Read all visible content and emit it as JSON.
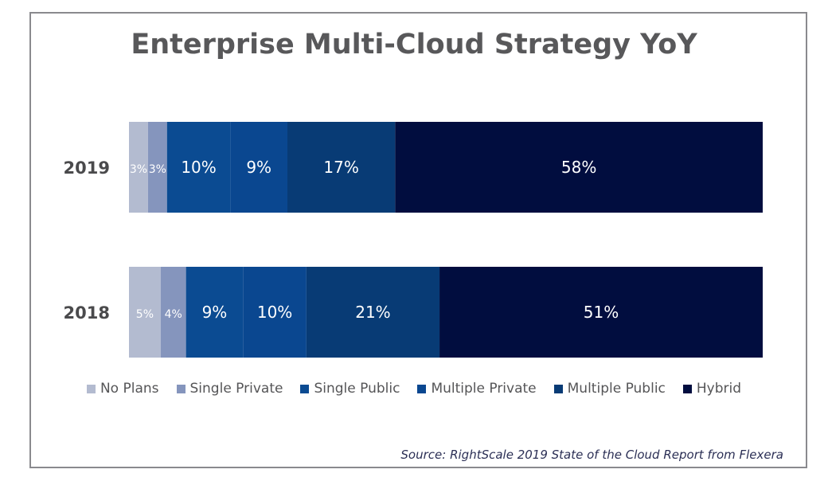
{
  "chart_data": {
    "type": "bar",
    "orientation": "horizontal",
    "stacked": true,
    "title": "Enterprise Multi-Cloud Strategy YoY",
    "xlabel": "",
    "ylabel": "",
    "xlim": [
      0,
      100
    ],
    "categories": [
      "2019",
      "2018"
    ],
    "series": [
      {
        "name": "No Plans",
        "color": "#b3bbd0",
        "values": [
          3,
          5
        ]
      },
      {
        "name": "Single Private",
        "color": "#8595bd",
        "values": [
          3,
          4
        ]
      },
      {
        "name": "Single Public",
        "color": "#0b4b92",
        "values": [
          10,
          9
        ]
      },
      {
        "name": "Multiple Private",
        "color": "#0a4790",
        "values": [
          9,
          10
        ]
      },
      {
        "name": "Multiple Public",
        "color": "#083b75",
        "values": [
          17,
          21
        ]
      },
      {
        "name": "Hybrid",
        "color": "#010d3f",
        "values": [
          58,
          51
        ]
      }
    ],
    "data_labels": [
      [
        "3%",
        "3%",
        "10%",
        "9%",
        "17%",
        "58%"
      ],
      [
        "5%",
        "4%",
        "9%",
        "10%",
        "21%",
        "51%"
      ]
    ],
    "legend_position": "bottom",
    "grid": false,
    "source": "Source: RightScale 2019 State of the Cloud Report from Flexera"
  }
}
